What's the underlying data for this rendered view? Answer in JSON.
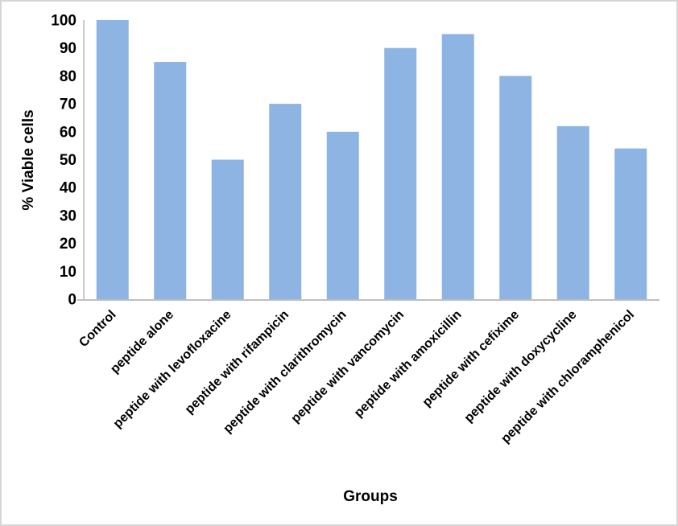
{
  "window": {
    "background_color": "#FFFFFF",
    "border_color": "#D6D6D6"
  },
  "chart_data": {
    "type": "bar",
    "title": "",
    "xlabel": "Groups",
    "ylabel": "% Viable cells",
    "categories": [
      "Control",
      "peptide alone",
      "peptide with levofloxacine",
      "peptide with rifampicin",
      "peptide with clarithromycin",
      "peptide with vancomycin",
      "peptide with amoxicillin",
      "peptide with cefixime",
      "peptide with doxycycline",
      "peptide with chloramphenicol"
    ],
    "values": [
      100,
      85,
      50,
      70,
      60,
      90,
      95,
      80,
      62,
      54
    ],
    "ylim": [
      0,
      100
    ],
    "ytick_step": 10,
    "ytick_labels": [
      "0",
      "10",
      "20",
      "30",
      "40",
      "50",
      "60",
      "70",
      "80",
      "90",
      "100"
    ],
    "grid": false,
    "legend_position": "none",
    "category_label_rotation_deg": -45,
    "bar_color": "#8DB4E2",
    "axis_line_color": "#BFBFBF",
    "text_color": "#000000"
  }
}
